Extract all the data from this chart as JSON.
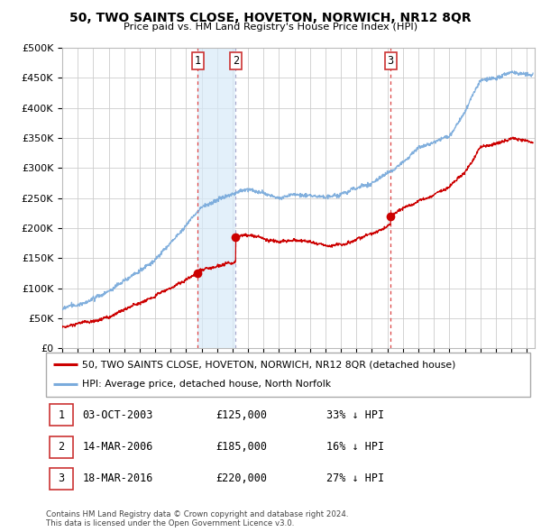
{
  "title": "50, TWO SAINTS CLOSE, HOVETON, NORWICH, NR12 8QR",
  "subtitle": "Price paid vs. HM Land Registry's House Price Index (HPI)",
  "footer": "Contains HM Land Registry data © Crown copyright and database right 2024.\nThis data is licensed under the Open Government Licence v3.0.",
  "legend_red": "50, TWO SAINTS CLOSE, HOVETON, NORWICH, NR12 8QR (detached house)",
  "legend_blue": "HPI: Average price, detached house, North Norfolk",
  "transactions": [
    {
      "num": 1,
      "date": "03-OCT-2003",
      "price": 125000,
      "pct": "33%",
      "dir": "↓",
      "x": 2003.75,
      "vline_color": "#dd4444"
    },
    {
      "num": 2,
      "date": "14-MAR-2006",
      "price": 185000,
      "pct": "16%",
      "dir": "↓",
      "x": 2006.2,
      "vline_color": "#aaaacc"
    },
    {
      "num": 3,
      "date": "18-MAR-2016",
      "price": 220000,
      "pct": "27%",
      "dir": "↓",
      "x": 2016.2,
      "vline_color": "#dd4444"
    }
  ],
  "red_color": "#cc0000",
  "blue_color": "#7aabdc",
  "hpi_shaded": "#d8eaf8",
  "shade_x1": 2003.75,
  "shade_x2": 2006.2,
  "bg_color": "#ffffff",
  "grid_color": "#cccccc",
  "ylim": [
    0,
    500000
  ],
  "xlim": [
    1995.0,
    2025.5
  ],
  "yticks": [
    0,
    50000,
    100000,
    150000,
    200000,
    250000,
    300000,
    350000,
    400000,
    450000,
    500000
  ],
  "xticks": [
    1995,
    1996,
    1997,
    1998,
    1999,
    2000,
    2001,
    2002,
    2003,
    2004,
    2005,
    2006,
    2007,
    2008,
    2009,
    2010,
    2011,
    2012,
    2013,
    2014,
    2015,
    2016,
    2017,
    2018,
    2019,
    2020,
    2021,
    2022,
    2023,
    2024,
    2025
  ]
}
